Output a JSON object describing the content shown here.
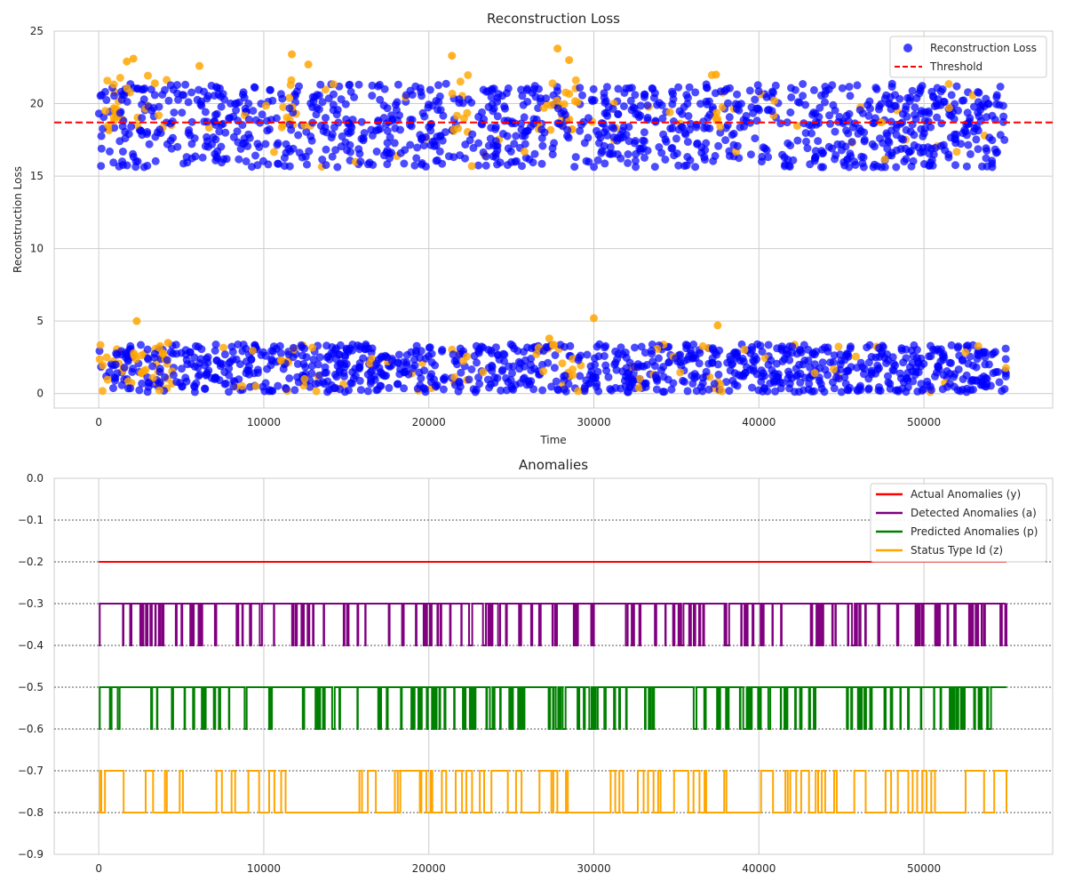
{
  "chart_data": [
    {
      "type": "scatter",
      "title": "Reconstruction Loss",
      "xlabel": "Time",
      "ylabel": "Reconstruction Loss",
      "xlim": [
        -2700,
        57800
      ],
      "ylim": [
        -1.0,
        25
      ],
      "xticks": [
        0,
        10000,
        20000,
        30000,
        40000,
        50000
      ],
      "yticks": [
        0,
        5,
        10,
        15,
        20,
        25
      ],
      "grid": true,
      "legend_position": "top-right",
      "threshold": 18.7,
      "x_range": [
        0,
        55000
      ],
      "legend": [
        "Reconstruction Loss",
        "Threshold"
      ],
      "colors": {
        "normal": "#0000ff",
        "anomaly": "#ffa500",
        "threshold": "#ff0000"
      },
      "series": [
        {
          "name": "Reconstruction Loss",
          "band_high": [
            15,
            22
          ],
          "band_low": [
            0,
            4
          ]
        },
        {
          "name": "Threshold",
          "value": 18.7
        }
      ],
      "anomaly_points": [
        [
          2100,
          23.1
        ],
        [
          1700,
          22.9
        ],
        [
          11700,
          23.4
        ],
        [
          12700,
          22.7
        ],
        [
          21400,
          23.3
        ],
        [
          27800,
          23.8
        ],
        [
          28500,
          23.0
        ],
        [
          6100,
          22.6
        ],
        [
          37400,
          22.0
        ],
        [
          3400,
          21.4
        ],
        [
          2300,
          5.0
        ],
        [
          30000,
          5.2
        ],
        [
          37500,
          4.7
        ],
        [
          27300,
          3.8
        ],
        [
          4200,
          3.5
        ]
      ]
    },
    {
      "type": "line",
      "title": "Anomalies",
      "xlim": [
        -2700,
        57800
      ],
      "ylim": [
        -0.9,
        0.0
      ],
      "xticks": [
        0,
        10000,
        20000,
        30000,
        40000,
        50000
      ],
      "yticks": [
        0.0,
        -0.1,
        -0.2,
        -0.3,
        -0.4,
        -0.5,
        -0.6,
        -0.7,
        -0.8,
        -0.9
      ],
      "grid": true,
      "legend_position": "top-right",
      "series": [
        {
          "name": "Actual Anomalies (y)",
          "color": "#ff0000",
          "low": -0.2,
          "high": -0.2
        },
        {
          "name": "Detected Anomalies (a)",
          "color": "#800080",
          "low": -0.4,
          "high": -0.3
        },
        {
          "name": "Predicted Anomalies (p)",
          "color": "#008000",
          "low": -0.6,
          "high": -0.5
        },
        {
          "name": "Status Type Id (z)",
          "color": "#ffa500",
          "low": -0.8,
          "high": -0.7
        }
      ],
      "reference_lines": [
        -0.1,
        -0.2,
        -0.3,
        -0.4,
        -0.5,
        -0.6,
        -0.7,
        -0.8
      ]
    }
  ]
}
